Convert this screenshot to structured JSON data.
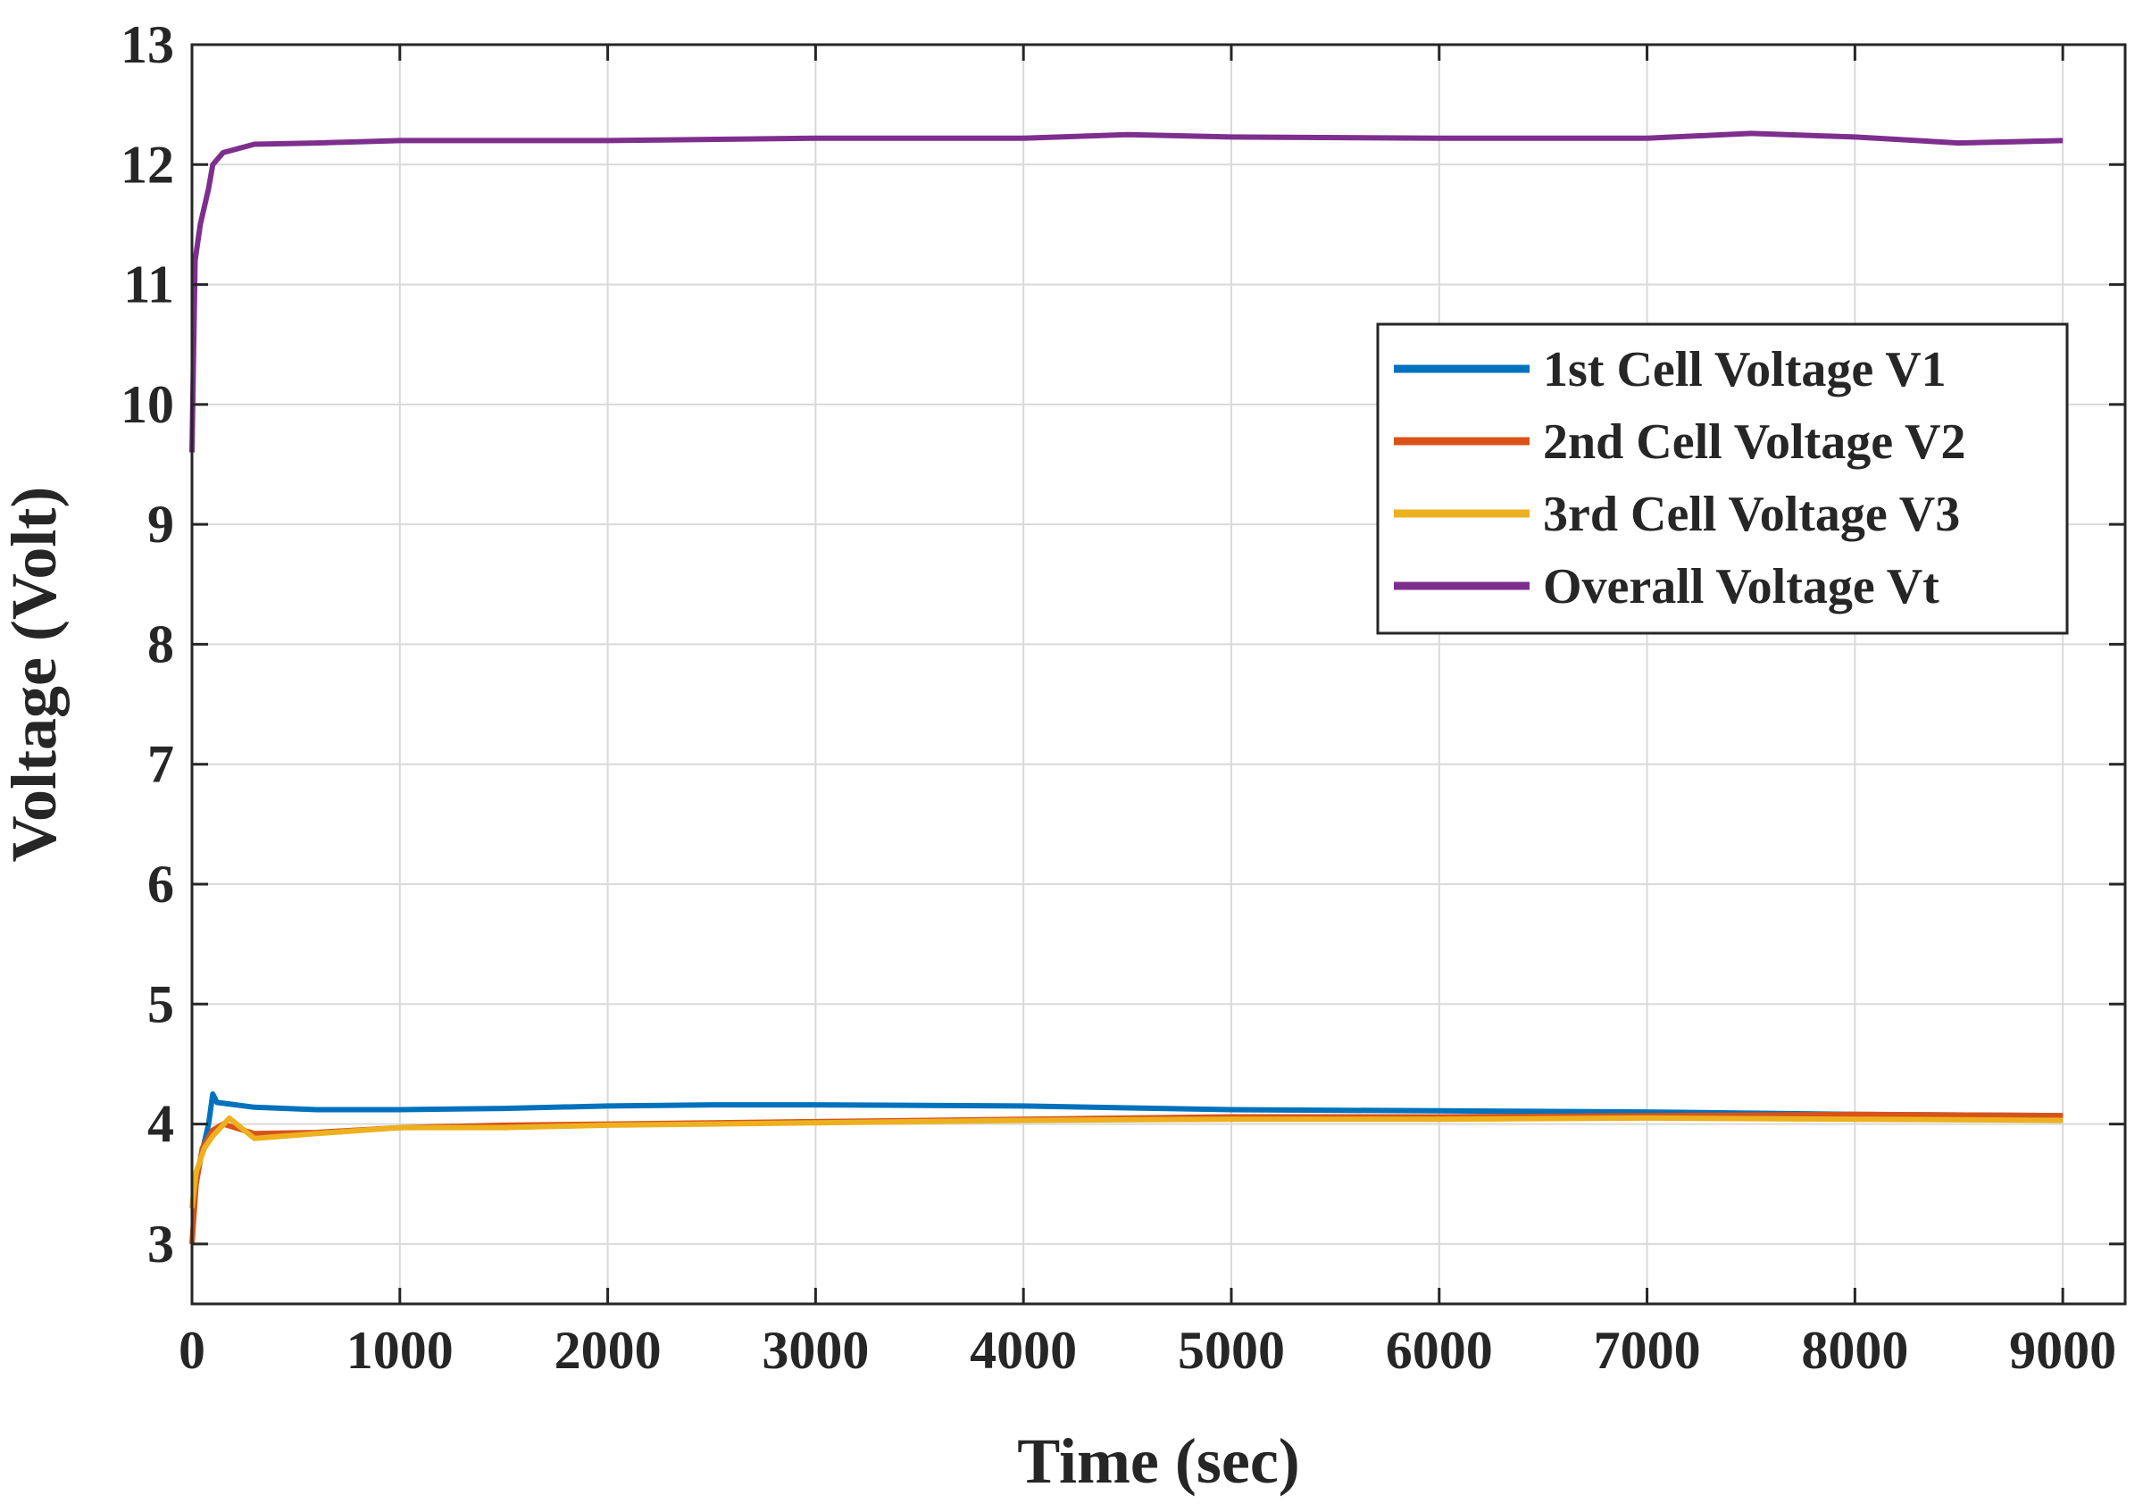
{
  "chart_data": {
    "type": "line",
    "title": "",
    "xlabel": "Time (sec)",
    "ylabel": "Voltage (Volt)",
    "xlim": [
      0,
      9300
    ],
    "ylim": [
      2.5,
      13
    ],
    "xticks": [
      0,
      1000,
      2000,
      3000,
      4000,
      5000,
      6000,
      7000,
      8000,
      9000
    ],
    "yticks": [
      3,
      4,
      5,
      6,
      7,
      8,
      9,
      10,
      11,
      12,
      13
    ],
    "grid": true,
    "legend_position": "upper-right",
    "series": [
      {
        "name": "1st Cell Voltage V1",
        "color": "#0072BD",
        "x": [
          0,
          40,
          80,
          100,
          120,
          300,
          600,
          1000,
          1500,
          2000,
          2500,
          3000,
          4000,
          5000,
          6000,
          7000,
          8000,
          9000
        ],
        "y": [
          3.3,
          3.7,
          4.0,
          4.25,
          4.18,
          4.14,
          4.12,
          4.12,
          4.13,
          4.15,
          4.16,
          4.16,
          4.15,
          4.12,
          4.11,
          4.1,
          4.08,
          4.07
        ]
      },
      {
        "name": "2nd Cell Voltage V2",
        "color": "#D95319",
        "x": [
          0,
          20,
          50,
          100,
          150,
          300,
          600,
          1000,
          1500,
          2000,
          2500,
          3000,
          4000,
          5000,
          6000,
          7000,
          8000,
          9000
        ],
        "y": [
          3.0,
          3.5,
          3.8,
          3.95,
          4.0,
          3.92,
          3.93,
          3.97,
          3.99,
          4.0,
          4.01,
          4.02,
          4.04,
          4.06,
          4.06,
          4.07,
          4.08,
          4.07
        ]
      },
      {
        "name": "3rd Cell Voltage V3",
        "color": "#EDB120",
        "x": [
          0,
          20,
          60,
          100,
          180,
          250,
          300,
          600,
          1000,
          1500,
          2000,
          2500,
          3000,
          4000,
          5000,
          6000,
          7000,
          8000,
          9000
        ],
        "y": [
          3.3,
          3.6,
          3.8,
          3.9,
          4.05,
          3.95,
          3.88,
          3.92,
          3.97,
          3.97,
          3.99,
          4.0,
          4.01,
          4.03,
          4.04,
          4.04,
          4.05,
          4.04,
          4.03
        ]
      },
      {
        "name": "Overall Voltage Vt",
        "color": "#7E2F8E",
        "x": [
          0,
          15,
          40,
          80,
          100,
          150,
          300,
          600,
          1000,
          2000,
          3000,
          4000,
          4500,
          5000,
          6000,
          7000,
          7500,
          8000,
          8500,
          9000
        ],
        "y": [
          9.6,
          11.2,
          11.5,
          11.8,
          12.0,
          12.1,
          12.17,
          12.18,
          12.2,
          12.2,
          12.22,
          12.22,
          12.25,
          12.23,
          12.22,
          12.22,
          12.26,
          12.23,
          12.18,
          12.2
        ]
      }
    ]
  }
}
